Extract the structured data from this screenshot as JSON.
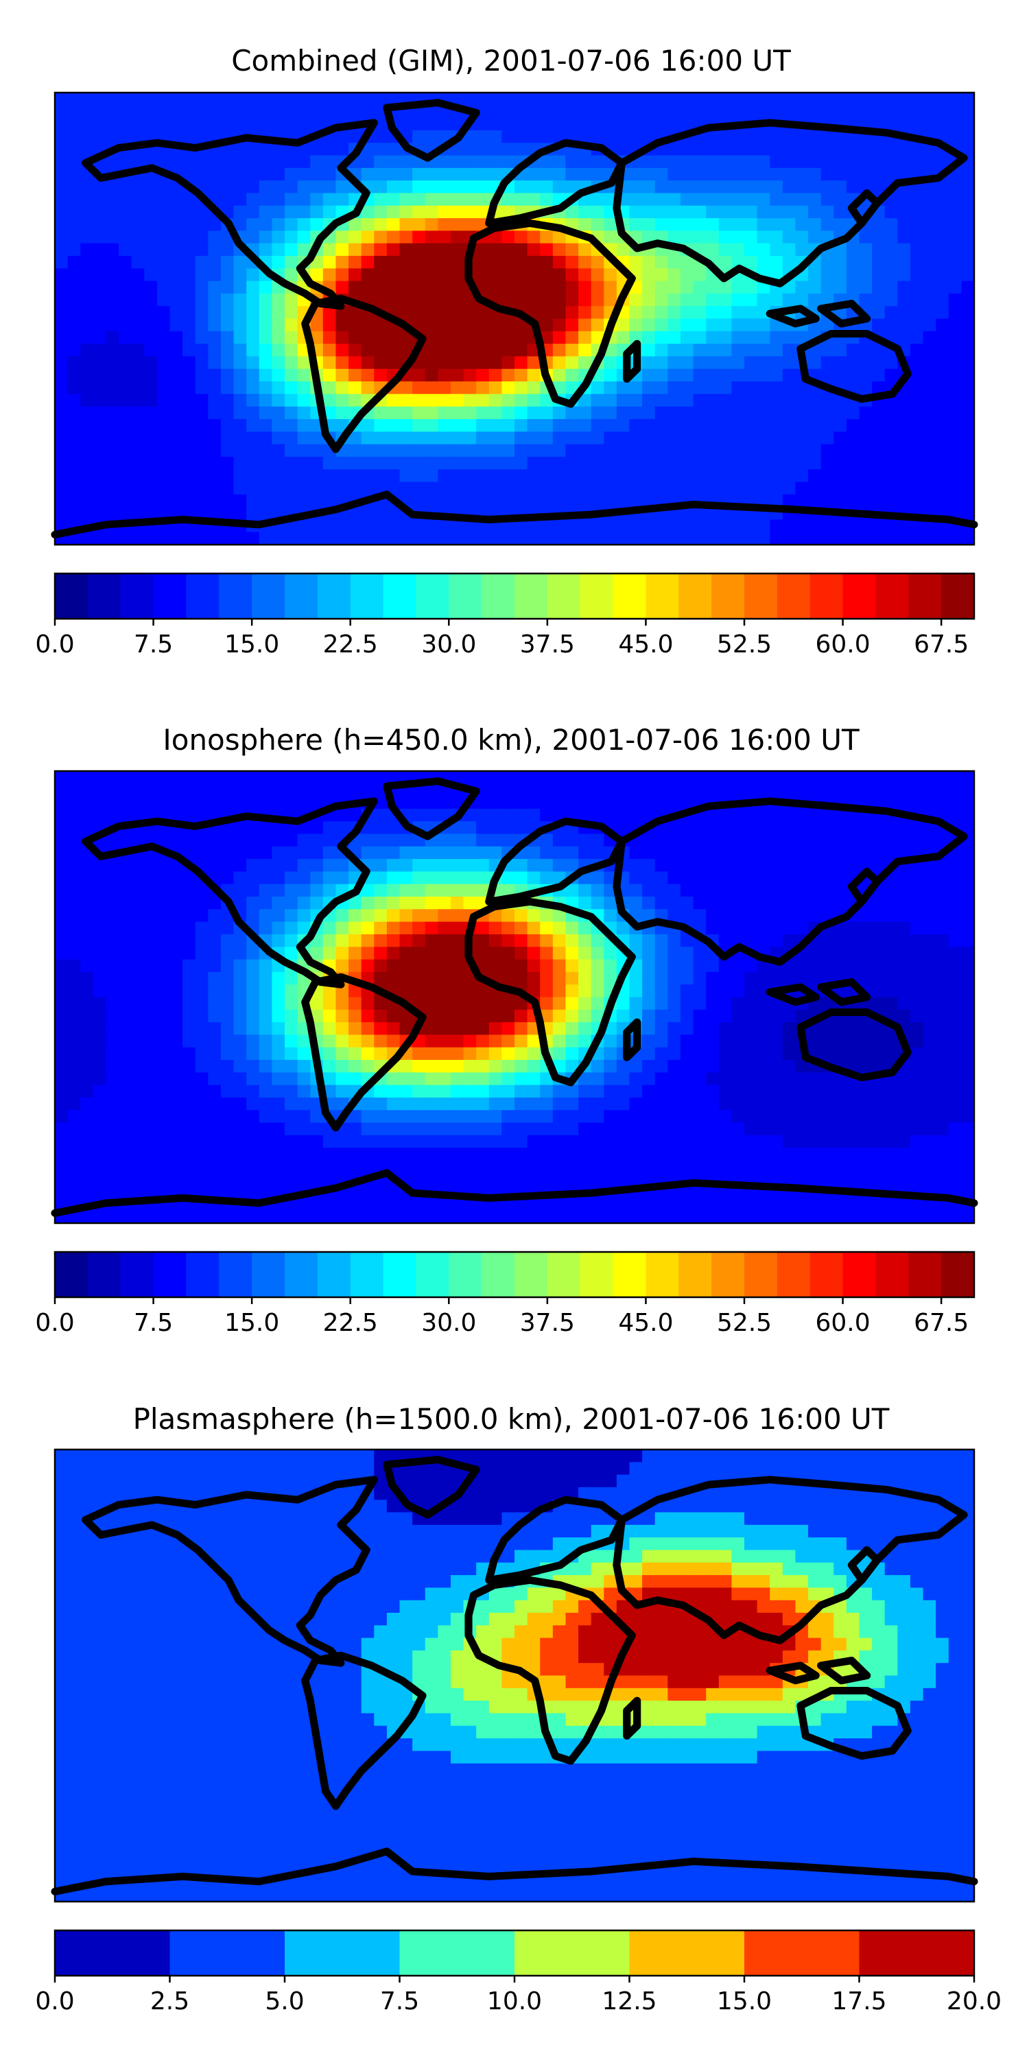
{
  "chart_data": [
    {
      "type": "heatmap",
      "title": "Combined (GIM), 2001-07-06 16:00 UT",
      "colorbar": {
        "range": [
          0.0,
          70.0
        ],
        "step": 2.5,
        "ticks": [
          "0.0",
          "7.5",
          "15.0",
          "22.5",
          "30.0",
          "37.5",
          "45.0",
          "52.5",
          "60.0",
          "67.5"
        ],
        "tick_values": [
          0.0,
          7.5,
          15.0,
          22.5,
          30.0,
          37.5,
          45.0,
          52.5,
          60.0,
          67.5
        ]
      },
      "field": {
        "background": 10,
        "features": [
          {
            "region": "tropical Atlantic / North Africa",
            "lon": -10,
            "lat": 10,
            "peak": 63
          },
          {
            "region": "South America / South Atlantic",
            "lon": -40,
            "lat": -8,
            "peak": 62
          },
          {
            "region": "Atlantic midlatitudes",
            "lon": -30,
            "lat": 25,
            "peak": 28
          },
          {
            "region": "Asia low latitudes",
            "lon": 80,
            "lat": 20,
            "peak": 28
          },
          {
            "region": "South Pacific (low)",
            "lon": -140,
            "lat": -20,
            "peak": 6
          }
        ]
      }
    },
    {
      "type": "heatmap",
      "title": "Ionosphere  (h=450.0 km), 2001-07-06 16:00 UT",
      "colorbar": {
        "range": [
          0.0,
          70.0
        ],
        "step": 2.5,
        "ticks": [
          "0.0",
          "7.5",
          "15.0",
          "22.5",
          "30.0",
          "37.5",
          "45.0",
          "52.5",
          "60.0",
          "67.5"
        ],
        "tick_values": [
          0.0,
          7.5,
          15.0,
          22.5,
          30.0,
          37.5,
          45.0,
          52.5,
          60.0,
          67.5
        ]
      },
      "field": {
        "background": 8,
        "features": [
          {
            "region": "tropical Atlantic / North Africa",
            "lon": -15,
            "lat": 10,
            "peak": 52
          },
          {
            "region": "South America / South Atlantic",
            "lon": -35,
            "lat": -8,
            "peak": 47
          },
          {
            "region": "Atlantic midlatitudes",
            "lon": -30,
            "lat": 30,
            "peak": 22
          },
          {
            "region": "Pacific / Australia (low)",
            "lon": 130,
            "lat": -15,
            "peak": 4
          }
        ]
      }
    },
    {
      "type": "heatmap",
      "title": "Plasmasphere (h=1500.0 km), 2001-07-06 16:00 UT",
      "colorbar": {
        "range": [
          0.0,
          20.0
        ],
        "step": 2.5,
        "ticks": [
          "0.0",
          "2.5",
          "5.0",
          "7.5",
          "10.0",
          "12.5",
          "15.0",
          "17.5",
          "20.0"
        ],
        "tick_values": [
          0.0,
          2.5,
          5.0,
          7.5,
          10.0,
          12.5,
          15.0,
          17.5,
          20.0
        ]
      },
      "field": {
        "background": 3,
        "features": [
          {
            "region": "Arabian Sea",
            "lon": 60,
            "lat": 20,
            "peak": 16.5
          },
          {
            "region": "South / East Asia",
            "lon": 100,
            "lat": 10,
            "peak": 12
          },
          {
            "region": "equatorial belt",
            "lon": 0,
            "lat": 0,
            "peak": 10.5
          },
          {
            "region": "polar regions (low)",
            "lon": 0,
            "lat": 80,
            "peak": 1.5
          }
        ]
      }
    }
  ]
}
